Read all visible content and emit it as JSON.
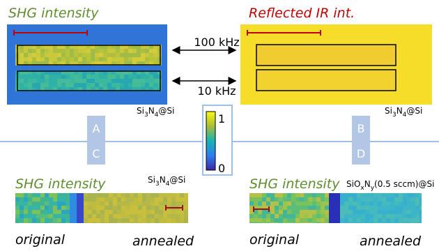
{
  "panels": {
    "top_left": {
      "title": "SHG intensity",
      "sample_parts": [
        "Si",
        "3",
        "N",
        "4",
        "@Si"
      ]
    },
    "top_right": {
      "title": "Reflected IR int.",
      "sample_parts": [
        "Si",
        "3",
        "N",
        "4",
        "@Si"
      ]
    },
    "bottom_left": {
      "title": "SHG intensity",
      "sample_parts": [
        "Si",
        "3",
        "N",
        "4",
        "@Si"
      ],
      "left_label": "original",
      "right_label": "annealed"
    },
    "bottom_right": {
      "title": "SHG intensity",
      "sample_parts": [
        "SiO",
        "x",
        "N",
        "y",
        "(0.5 sccm)@Si"
      ],
      "left_label": "original",
      "right_label": "annealed"
    }
  },
  "arrows": [
    "100 kHz",
    "10 kHz"
  ],
  "colorbar": {
    "max_label": "1",
    "min_label": "0"
  },
  "letters": [
    "A",
    "B",
    "C",
    "D"
  ]
}
